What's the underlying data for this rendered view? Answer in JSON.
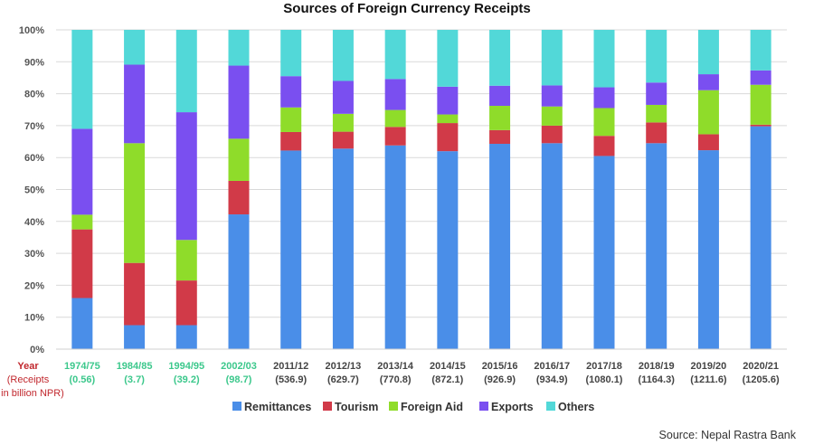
{
  "chart_data": {
    "type": "stacked-bar-100",
    "title": "Sources of Foreign Currency Receipts",
    "xlabel": "Year",
    "xlabel_sub": [
      "(Receipts",
      "in billion NPR)"
    ],
    "ylim": [
      0,
      100
    ],
    "yticks": [
      "0%",
      "10%",
      "20%",
      "30%",
      "40%",
      "50%",
      "60%",
      "70%",
      "80%",
      "90%",
      "100%"
    ],
    "grid": true,
    "legend_position": "bottom",
    "categories": [
      "1974/75",
      "1984/85",
      "1994/95",
      "2002/03",
      "2011/12",
      "2012/13",
      "2013/14",
      "2014/15",
      "2015/16",
      "2016/17",
      "2017/18",
      "2018/19",
      "2019/20",
      "2020/21"
    ],
    "receipts": [
      "(0.56)",
      "(3.7)",
      "(39.2)",
      "(98.7)",
      "(536.9)",
      "(629.7)",
      "(770.8)",
      "(872.1)",
      "(926.9)",
      "(934.9)",
      "(1080.1)",
      "(1164.3)",
      "(1211.6)",
      "(1205.6)"
    ],
    "highlighted_categories": [
      0,
      1,
      2,
      3
    ],
    "highlight_color": "#3cc88c",
    "normal_label_color": "#444444",
    "series": [
      {
        "name": "Remittances",
        "color": "#4a8ee8",
        "values": [
          16,
          7.5,
          7.5,
          42.2,
          62.2,
          62.8,
          63.8,
          62,
          64.3,
          64.5,
          60.5,
          64.5,
          62.3,
          69.8
        ]
      },
      {
        "name": "Tourism",
        "color": "#d13a48",
        "values": [
          21.5,
          19.5,
          14,
          10.5,
          5.8,
          5.3,
          5.8,
          8.8,
          4.3,
          5.5,
          6.3,
          6.5,
          5,
          0.5
        ]
      },
      {
        "name": "Foreign Aid",
        "color": "#8fdc2a",
        "values": [
          4.6,
          37.5,
          12.7,
          13.2,
          7.7,
          5.6,
          5.3,
          2.7,
          7.6,
          6,
          8.7,
          5.5,
          13.8,
          12.5
        ]
      },
      {
        "name": "Exports",
        "color": "#7a4ff0",
        "values": [
          26.9,
          24.6,
          40,
          22.9,
          9.8,
          10.3,
          9.7,
          8.7,
          6.3,
          6.6,
          6.5,
          7,
          5,
          4.5
        ]
      },
      {
        "name": "Others",
        "color": "#52d8d8",
        "values": [
          31,
          10.9,
          25.8,
          11.2,
          14.5,
          16,
          15.4,
          17.8,
          17.5,
          17.4,
          18,
          16.5,
          13.9,
          12.7
        ]
      }
    ],
    "source": "Source: Nepal Rastra Bank"
  }
}
